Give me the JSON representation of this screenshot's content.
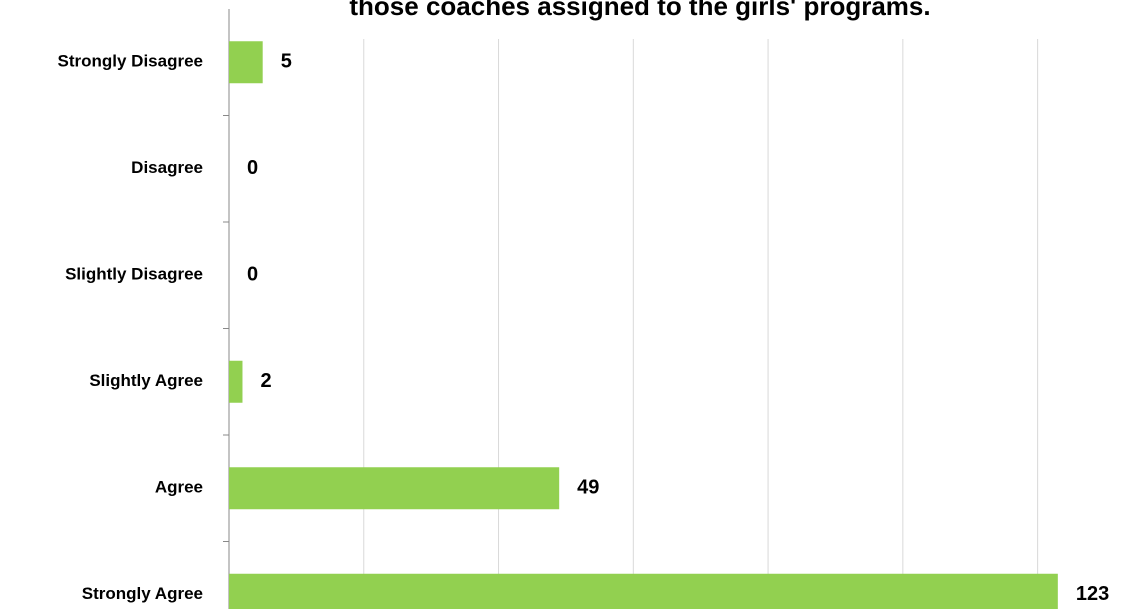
{
  "chart_data": {
    "type": "hbar",
    "title": "those coaches assigned to the girls' programs.",
    "categories": [
      "Strongly Disagree",
      "Disagree",
      "Slightly Disagree",
      "Slightly Agree",
      "Agree",
      "Strongly Agree"
    ],
    "values": [
      5,
      0,
      0,
      2,
      49,
      123
    ],
    "color": "#92d050",
    "xlim": [
      0,
      130
    ],
    "xticks": [
      0,
      20,
      40,
      60,
      80,
      100,
      120
    ],
    "grid": true
  }
}
